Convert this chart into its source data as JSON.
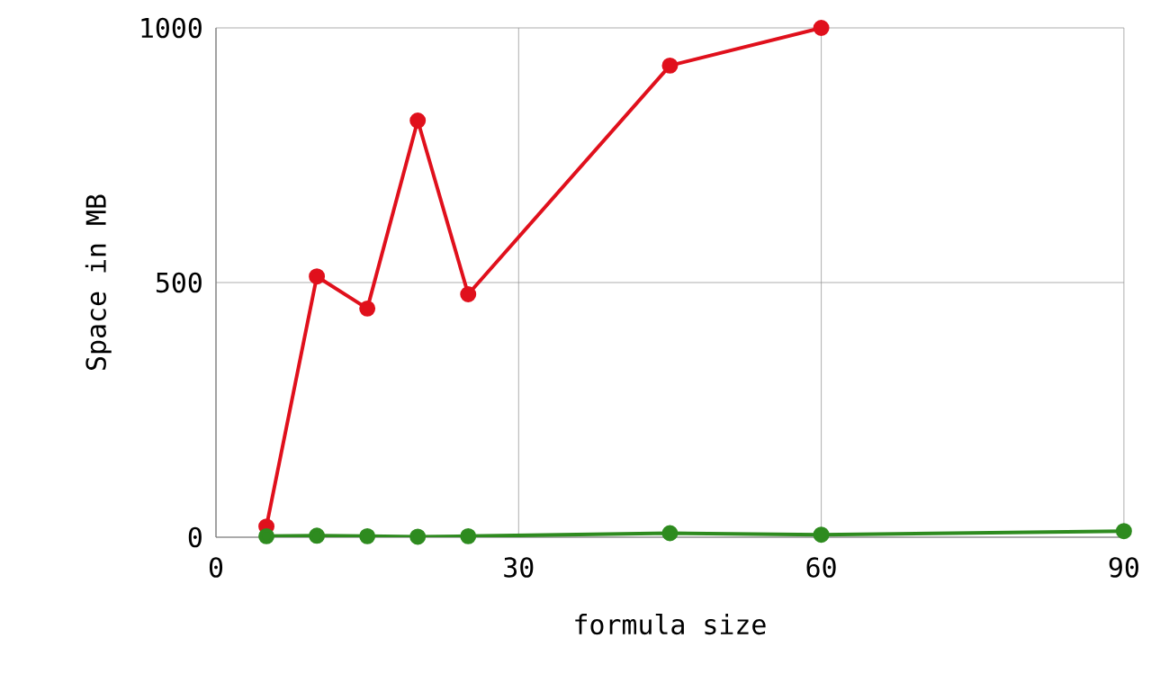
{
  "chart_data": {
    "type": "line",
    "xlabel": "formula size",
    "ylabel": "Space in MB",
    "xlim": [
      0,
      90
    ],
    "ylim": [
      0,
      1000
    ],
    "xticks": [
      0,
      30,
      60,
      90
    ],
    "yticks": [
      0,
      500,
      1000
    ],
    "grid": true,
    "marker": "circle",
    "line_style": "solid",
    "series": [
      {
        "color": "#e0101c",
        "x": [
          5,
          10,
          15,
          20,
          25,
          45,
          60
        ],
        "values": [
          21,
          512,
          449,
          818,
          477,
          926,
          1000
        ]
      },
      {
        "color": "#2e8b1f",
        "x": [
          5,
          10,
          15,
          20,
          25,
          45,
          60,
          90
        ],
        "values": [
          2,
          3,
          2,
          1,
          2,
          8,
          5,
          12
        ]
      }
    ]
  }
}
